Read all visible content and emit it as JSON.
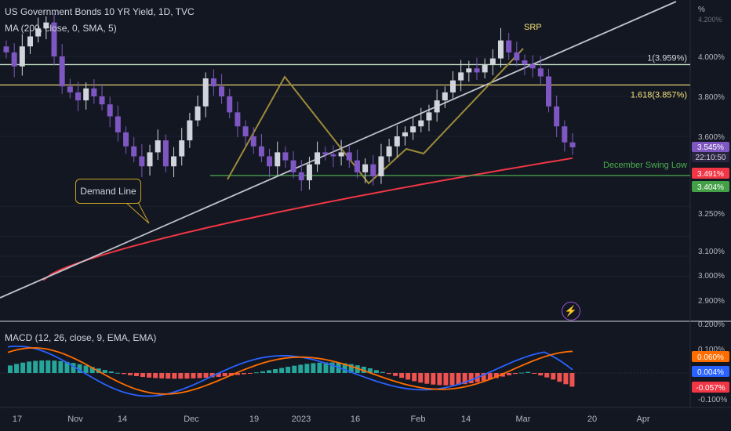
{
  "header": {
    "title": "US Government Bonds 10 YR Yield, 1D, TVC",
    "ma_legend": "MA (200, close, 0, SMA, 5)",
    "macd_legend": "MACD (12, 26, close, 9, EMA, EMA)"
  },
  "axis": {
    "percent_symbol": "%",
    "price_ticks": [
      "4.000%",
      "3.800%",
      "3.600%",
      "3.250%",
      "3.100%",
      "3.000%",
      "2.900%"
    ],
    "top_partial_tick": "4.200%",
    "macd_ticks": [
      "0.200%",
      "0.100%",
      "-0.100%"
    ],
    "x_labels": [
      "17",
      "Nov",
      "14",
      "Dec",
      "19",
      "2023",
      "16",
      "Feb",
      "14",
      "Mar",
      "20",
      "Apr"
    ]
  },
  "tags": {
    "last_price": "3.545%",
    "countdown": "22:10:50",
    "ma_value": "3.491%",
    "support_value": "3.404%",
    "macd_signal": "0.060%",
    "macd_line": "0.004%",
    "macd_hist": "-0.057%"
  },
  "annotations": {
    "srp": "SRP",
    "fib_1": "1(3.959%)",
    "fib_1618": "1.618(3.857%)",
    "swing_low": "December Swing Low",
    "demand_line": "Demand Line"
  },
  "colors": {
    "background": "#131722",
    "up_candle": "#d1d4dc",
    "down_candle": "#7e57c2",
    "ma": "#f23645",
    "fib_1": "#c8e6c9",
    "fib_1618": "#f5e27a",
    "swing_low": "#4caf50",
    "demand_line": "#c0c3cc",
    "pattern": "#9c8a3a",
    "macd_line": "#2962ff",
    "signal_line": "#ff6d00",
    "hist_pos": "#26a69a",
    "hist_neg": "#ef5350"
  },
  "chart_data": {
    "type": "candlestick",
    "title": "US Government Bonds 10 YR Yield, 1D, TVC",
    "unit": "%",
    "x_dates": [
      "Oct 17",
      "Nov",
      "Nov 14",
      "Dec",
      "Dec 19",
      "2023",
      "Jan 16",
      "Feb",
      "Feb 14",
      "Mar",
      "Mar 20",
      "Apr"
    ],
    "close_path": [
      4.02,
      3.95,
      4.05,
      4.1,
      4.14,
      4.17,
      4.0,
      3.85,
      3.82,
      3.78,
      3.84,
      3.8,
      3.76,
      3.7,
      3.62,
      3.55,
      3.5,
      3.45,
      3.52,
      3.58,
      3.45,
      3.5,
      3.58,
      3.68,
      3.75,
      3.89,
      3.85,
      3.8,
      3.72,
      3.65,
      3.6,
      3.55,
      3.5,
      3.45,
      3.52,
      3.48,
      3.42,
      3.38,
      3.46,
      3.52,
      3.51,
      3.5,
      3.52,
      3.48,
      3.42,
      3.46,
      3.4,
      3.5,
      3.55,
      3.6,
      3.62,
      3.65,
      3.68,
      3.72,
      3.78,
      3.82,
      3.88,
      3.92,
      3.94,
      3.92,
      3.96,
      3.99,
      4.08,
      4.02,
      3.98,
      3.96,
      3.94,
      3.9,
      3.75,
      3.65,
      3.57,
      3.545
    ],
    "last": 3.545,
    "levels": [
      {
        "label": "1(3.959%)",
        "value": 3.959
      },
      {
        "label": "1.618(3.857%)",
        "value": 3.857
      },
      {
        "label": "December Swing Low",
        "value": 3.404
      }
    ],
    "ma_200": {
      "start": 2.88,
      "end": 3.491
    },
    "macd": {
      "macd": 0.004,
      "signal": 0.06,
      "histogram": -0.057,
      "ylim": [
        -0.12,
        0.2
      ]
    },
    "price_ylim": [
      2.85,
      4.25
    ]
  }
}
